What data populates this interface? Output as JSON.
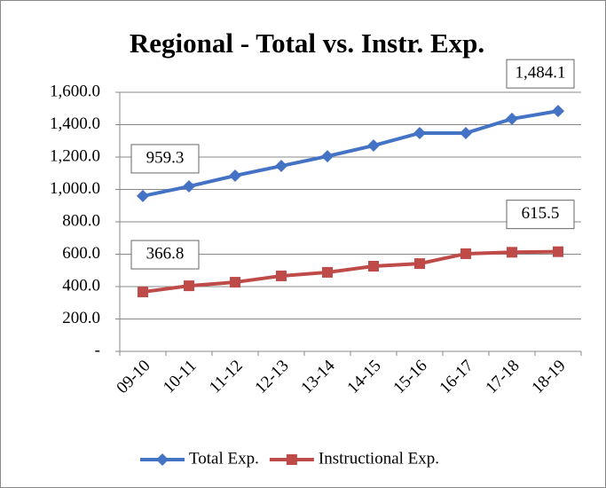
{
  "chart_data": {
    "type": "line",
    "title": "Regional - Total vs. Instr.  Exp.",
    "categories": [
      "09-10",
      "10-11",
      "11-12",
      "12-13",
      "13-14",
      "14-15",
      "15-16",
      "16-17",
      "17-18",
      "18-19"
    ],
    "series": [
      {
        "name": "Total Exp.",
        "color": "#4472c4",
        "marker": "diamond",
        "values": [
          959.3,
          1019,
          1085,
          1145,
          1205,
          1271,
          1348,
          1348,
          1436,
          1484.1
        ],
        "value_labels": [
          "959.3",
          null,
          null,
          null,
          null,
          null,
          null,
          null,
          null,
          "1,484.1"
        ]
      },
      {
        "name": "Instructional Exp.",
        "color": "#be4b48",
        "marker": "square",
        "values": [
          366.8,
          405,
          427,
          466,
          488,
          526,
          542,
          603,
          612,
          615.5
        ],
        "value_labels": [
          "366.8",
          null,
          null,
          null,
          null,
          null,
          null,
          null,
          null,
          "615.5"
        ]
      }
    ],
    "ylim": [
      0,
      1600
    ],
    "yticks": [
      {
        "value": 0,
        "label": "-"
      },
      {
        "value": 200,
        "label": "200.0"
      },
      {
        "value": 400,
        "label": "400.0"
      },
      {
        "value": 600,
        "label": "600.0"
      },
      {
        "value": 800,
        "label": "800.0"
      },
      {
        "value": 1000,
        "label": "1,000.0"
      },
      {
        "value": 1200,
        "label": "1,200.0"
      },
      {
        "value": 1400,
        "label": "1,400.0"
      },
      {
        "value": 1600,
        "label": "1,600.0"
      }
    ],
    "grid": true,
    "legend": "bottom"
  }
}
